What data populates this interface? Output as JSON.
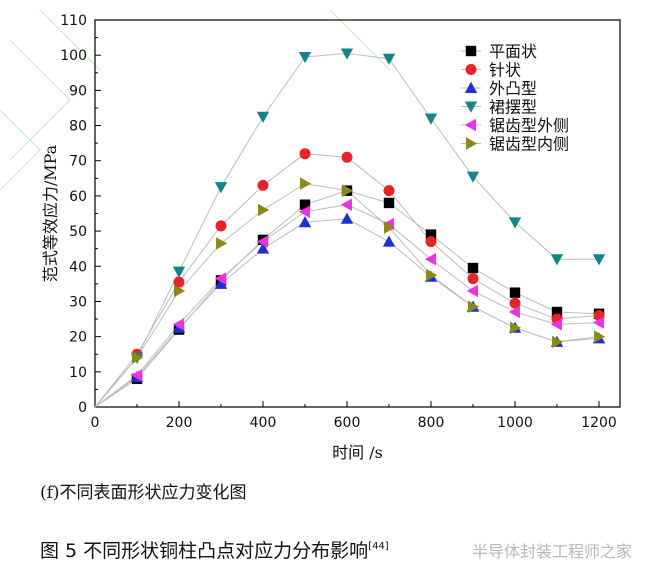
{
  "chart_data": {
    "type": "line",
    "title": "",
    "xlabel": "时间 /s",
    "ylabel": "范式等效应力/MPa",
    "xlim": [
      0,
      1250
    ],
    "ylim": [
      0,
      110
    ],
    "xticks": [
      0,
      200,
      400,
      600,
      800,
      1000,
      1200
    ],
    "yticks": [
      0,
      10,
      20,
      30,
      40,
      50,
      60,
      70,
      80,
      90,
      100,
      110
    ],
    "grid": false,
    "legend_position": "top-right",
    "x": [
      0,
      100,
      200,
      300,
      400,
      500,
      600,
      700,
      800,
      900,
      1000,
      1100,
      1200
    ],
    "series": [
      {
        "name": "平面状",
        "marker": "square",
        "color": "#000000",
        "values": [
          0,
          8,
          22,
          36,
          47.5,
          57.5,
          61.5,
          58,
          49,
          39.5,
          32.5,
          27,
          26.5
        ]
      },
      {
        "name": "针状",
        "marker": "circle",
        "color": "#e8232a",
        "values": [
          0,
          15,
          35.5,
          51.5,
          63,
          72,
          71,
          61.5,
          47,
          36.5,
          29.5,
          25,
          26
        ]
      },
      {
        "name": "外凸型",
        "marker": "triangle-up",
        "color": "#1e2fd4",
        "values": [
          0,
          8.5,
          22.5,
          35,
          45,
          52.5,
          53.5,
          47,
          37,
          28.5,
          22.5,
          18.5,
          19.5
        ]
      },
      {
        "name": "裙摆型",
        "marker": "triangle-down",
        "color": "#13848a",
        "values": [
          0,
          14,
          38.5,
          62.5,
          82.5,
          99.5,
          100.5,
          99,
          82,
          65.5,
          52.5,
          42,
          42
        ]
      },
      {
        "name": "锯齿型外侧",
        "marker": "triangle-left",
        "color": "#e935e0",
        "values": [
          0,
          9,
          23.5,
          36.5,
          47,
          55.5,
          57.5,
          52,
          42,
          33,
          27,
          23.5,
          24
        ]
      },
      {
        "name": "锯齿型内侧",
        "marker": "triangle-right",
        "color": "#8a8a12",
        "values": [
          0,
          14,
          33,
          46.5,
          56,
          63.5,
          61.5,
          51,
          37.5,
          28.5,
          22.5,
          18.5,
          20
        ]
      }
    ]
  },
  "captions": {
    "sub": "(f)不同表面形状应力变化图",
    "figure": "图 5  不同形状铜柱凸点对应力分布影响",
    "figure_ref": "[44]",
    "watermark": "半导体封装工程师之家"
  }
}
